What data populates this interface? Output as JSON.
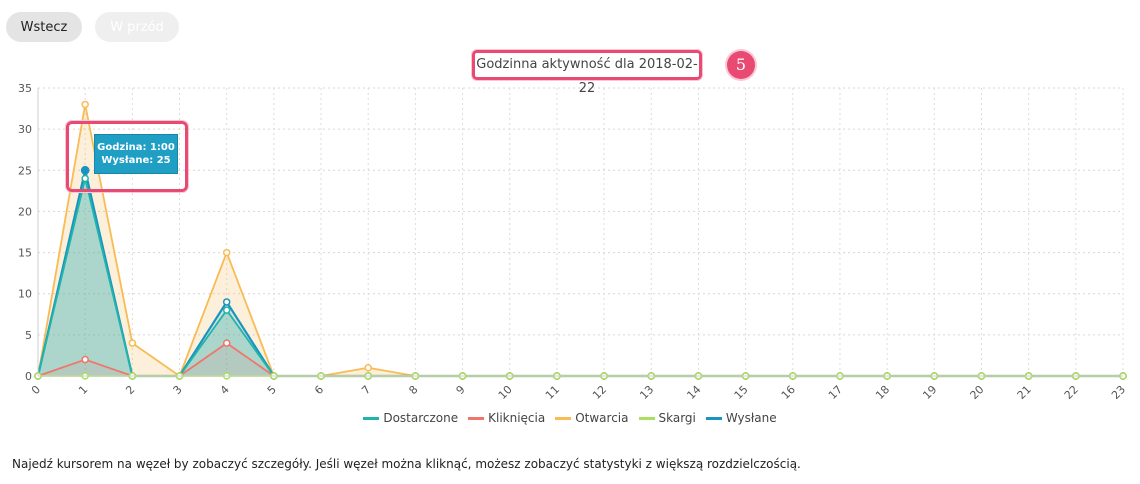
{
  "nav": {
    "back_label": "Wstecz",
    "forward_label": "W przód"
  },
  "title": "Godzinna aktywność dla 2018-02-22",
  "step_badge": "5",
  "tooltip": {
    "line1": "Godzina: 1:00",
    "line2": "Wysłane: 25"
  },
  "hint": "Najedź kursorem na węzeł by zobaczyć szczegóły. Jeśli węzeł można kliknąć, możesz zobaczyć statystyki z większą rozdzielczością.",
  "chart_data": {
    "type": "area",
    "title": "Godzinna aktywność dla 2018-02-22",
    "xlabel": "",
    "ylabel": "",
    "x": [
      0,
      1,
      2,
      3,
      4,
      5,
      6,
      7,
      8,
      9,
      10,
      11,
      12,
      13,
      14,
      15,
      16,
      17,
      18,
      19,
      20,
      21,
      22,
      23
    ],
    "ylim": [
      0,
      35
    ],
    "yticks": [
      0,
      5,
      10,
      15,
      20,
      25,
      30,
      35
    ],
    "grid": true,
    "legend": "bottom",
    "series": [
      {
        "name": "Dostarczone",
        "color": "#1fb5ad",
        "values": [
          0,
          24,
          0,
          0,
          8,
          0,
          0,
          0,
          0,
          0,
          0,
          0,
          0,
          0,
          0,
          0,
          0,
          0,
          0,
          0,
          0,
          0,
          0,
          0
        ]
      },
      {
        "name": "Kliknięcia",
        "color": "#f0766a",
        "values": [
          0,
          2,
          0,
          0,
          4,
          0,
          0,
          0,
          0,
          0,
          0,
          0,
          0,
          0,
          0,
          0,
          0,
          0,
          0,
          0,
          0,
          0,
          0,
          0
        ]
      },
      {
        "name": "Otwarcia",
        "color": "#f8bb56",
        "values": [
          0,
          33,
          4,
          0,
          15,
          0,
          0,
          1,
          0,
          0,
          0,
          0,
          0,
          0,
          0,
          0,
          0,
          0,
          0,
          0,
          0,
          0,
          0,
          0
        ]
      },
      {
        "name": "Skargi",
        "color": "#a8e05f",
        "values": [
          0,
          0,
          0,
          0,
          0,
          0,
          0,
          0,
          0,
          0,
          0,
          0,
          0,
          0,
          0,
          0,
          0,
          0,
          0,
          0,
          0,
          0,
          0,
          0
        ]
      },
      {
        "name": "Wysłane",
        "color": "#1b93c0",
        "values": [
          0,
          25,
          0,
          0,
          9,
          0,
          0,
          0,
          0,
          0,
          0,
          0,
          0,
          0,
          0,
          0,
          0,
          0,
          0,
          0,
          0,
          0,
          0,
          0
        ]
      }
    ]
  }
}
